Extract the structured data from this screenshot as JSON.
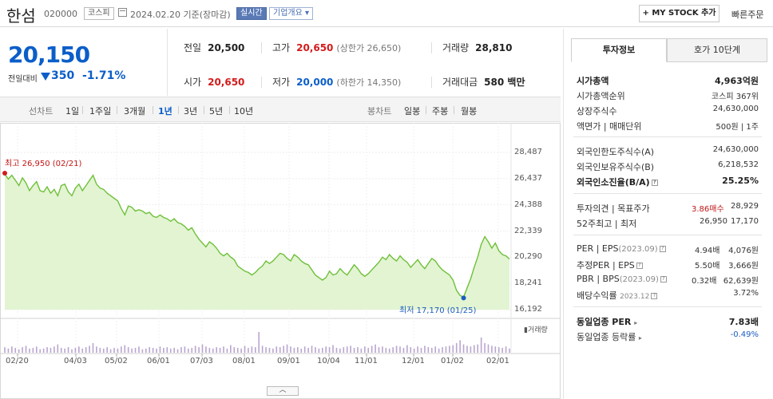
{
  "header": {
    "name": "한섬",
    "code": "020000",
    "market": "코스피",
    "date": "2024.02.20 기준(장마감)",
    "realtime": "실시간",
    "company_info": "기업개요",
    "my_stock": "+ MY STOCK 추가",
    "quick_order": "빠른주문"
  },
  "price": {
    "current": "20,150",
    "change_label": "전일대비",
    "change": "350",
    "change_pct": "-1.71%",
    "up_color": "#d21c1c",
    "down_color": "#0b5ec9"
  },
  "stats": {
    "prev_label": "전일",
    "prev": "20,500",
    "high_label": "고가",
    "high": "20,650",
    "upper_limit": "(상한가 26,650)",
    "volume_label": "거래량",
    "volume": "28,810",
    "open_label": "시가",
    "open": "20,650",
    "low_label": "저가",
    "low": "20,000",
    "lower_limit": "(하한가 14,350)",
    "amount_label": "거래대금",
    "amount": "580 백만"
  },
  "periods": {
    "line_label": "선차트",
    "items": [
      "1일",
      "1주일",
      "3개월",
      "1년",
      "3년",
      "5년",
      "10년"
    ],
    "active": "1년",
    "candle_label": "봉차트",
    "candle_items": [
      "일봉",
      "주봉",
      "월봉"
    ]
  },
  "chart_data": {
    "type": "area",
    "high_label": "최고 26,950 (02/21)",
    "low_label": "최저 17,170 (01/25)",
    "y_ticks": [
      "28,487",
      "26,437",
      "24,388",
      "22,339",
      "20,290",
      "18,241",
      "16,192"
    ],
    "x_ticks": [
      "02/20",
      "04/03",
      "05/02",
      "06/01",
      "07/03",
      "08/01",
      "09/01",
      "10/04",
      "11/01",
      "12/01",
      "01/02",
      "02/01"
    ],
    "ylim": [
      16192,
      28487
    ],
    "volume_label": "거래량",
    "line_color": "#6fc03a",
    "fill_color": "#dff3cd",
    "values": [
      26800,
      26400,
      26700,
      26300,
      25900,
      26500,
      26100,
      25500,
      25900,
      26200,
      25500,
      25400,
      25800,
      25300,
      25600,
      25100,
      25900,
      26000,
      25400,
      25100,
      25700,
      26000,
      25500,
      25900,
      26300,
      26700,
      26000,
      25700,
      25600,
      25300,
      25100,
      24900,
      24700,
      24100,
      23600,
      24300,
      24200,
      23900,
      24000,
      23900,
      23700,
      23800,
      23500,
      23400,
      23600,
      23400,
      23300,
      23100,
      23300,
      23000,
      22900,
      22700,
      22400,
      22600,
      22100,
      21700,
      21400,
      21100,
      21500,
      21300,
      21000,
      20600,
      20400,
      20600,
      20300,
      20100,
      19600,
      19400,
      19200,
      19100,
      18900,
      19100,
      19400,
      19600,
      20000,
      19800,
      20000,
      20300,
      20600,
      20500,
      20200,
      20000,
      20500,
      20300,
      20000,
      19800,
      19700,
      19300,
      18900,
      18700,
      18500,
      18700,
      19200,
      18900,
      19000,
      19400,
      19100,
      18900,
      19300,
      19700,
      19400,
      19000,
      18800,
      19000,
      19300,
      19600,
      19900,
      20300,
      20100,
      20500,
      20200,
      20000,
      20400,
      20100,
      19900,
      19500,
      19800,
      20100,
      19700,
      19400,
      19800,
      20200,
      20000,
      19600,
      19300,
      19100,
      18900,
      18500,
      17700,
      17300,
      17170,
      17900,
      18600,
      19500,
      20300,
      21300,
      21900,
      21500,
      21000,
      21400,
      20800,
      20500,
      20400,
      20150
    ],
    "volumes": [
      8,
      6,
      9,
      7,
      5,
      8,
      10,
      6,
      7,
      9,
      5,
      6,
      8,
      7,
      9,
      12,
      7,
      6,
      8,
      5,
      7,
      9,
      6,
      8,
      10,
      14,
      9,
      7,
      6,
      8,
      5,
      7,
      6,
      9,
      11,
      8,
      6,
      7,
      9,
      5,
      6,
      8,
      7,
      6,
      9,
      7,
      8,
      6,
      7,
      5,
      8,
      9,
      6,
      7,
      10,
      8,
      12,
      9,
      7,
      6,
      8,
      7,
      9,
      6,
      11,
      8,
      7,
      6,
      10,
      7,
      9,
      8,
      30,
      10,
      8,
      7,
      6,
      9,
      8,
      10,
      12,
      9,
      7,
      8,
      6,
      9,
      7,
      10,
      8,
      6,
      7,
      9,
      8,
      11,
      7,
      6,
      8,
      9,
      10,
      7,
      8,
      6,
      9,
      7,
      10,
      12,
      8,
      9,
      7,
      6,
      8,
      10,
      9,
      7,
      11,
      8,
      6,
      9,
      7,
      10,
      8,
      7,
      9,
      6,
      8,
      9,
      10,
      11,
      14,
      18,
      12,
      10,
      9,
      11,
      12,
      22,
      14,
      12,
      10,
      9,
      8,
      7,
      9,
      6
    ]
  },
  "invest": {
    "tab_info": "투자정보",
    "tab_order": "호가 10단계",
    "market_cap_label": "시가총액",
    "market_cap": "4,963억원",
    "rank_label": "시가총액순위",
    "rank": "코스피 367위",
    "shares_label": "상장주식수",
    "shares": "24,630,000",
    "par_label": "액면가 | 매매단위",
    "par": "500원 | 1주",
    "foreign_limit_label": "외국인한도주식수(A)",
    "foreign_limit": "24,630,000",
    "foreign_hold_label": "외국인보유주식수(B)",
    "foreign_hold": "6,218,532",
    "foreign_ratio_label": "외국인소진율(B/A)",
    "foreign_ratio": "25.25%",
    "opinion_label": "투자의견 | 목표주가",
    "opinion": "3.86매수",
    "target": "28,929",
    "w52_label": "52주최고 | 최저",
    "w52_high": "26,950",
    "w52_low": "17,170",
    "per_label": "PER | EPS",
    "per_year": "(2023.09)",
    "per": "4.94배",
    "eps": "4,076원",
    "eper_label": "추정PER | EPS",
    "eper": "5.50배",
    "eeps": "3,666원",
    "pbr_label": "PBR | BPS",
    "pbr_year": "(2023.09)",
    "pbr": "0.32배",
    "bps": "62,639원",
    "div_label": "배당수익률",
    "div_year": "2023.12",
    "div": "3.72%",
    "ind_per_label": "동일업종 PER",
    "ind_per": "7.83배",
    "ind_chg_label": "동일업종 등락률",
    "ind_chg": "-0.49%"
  }
}
